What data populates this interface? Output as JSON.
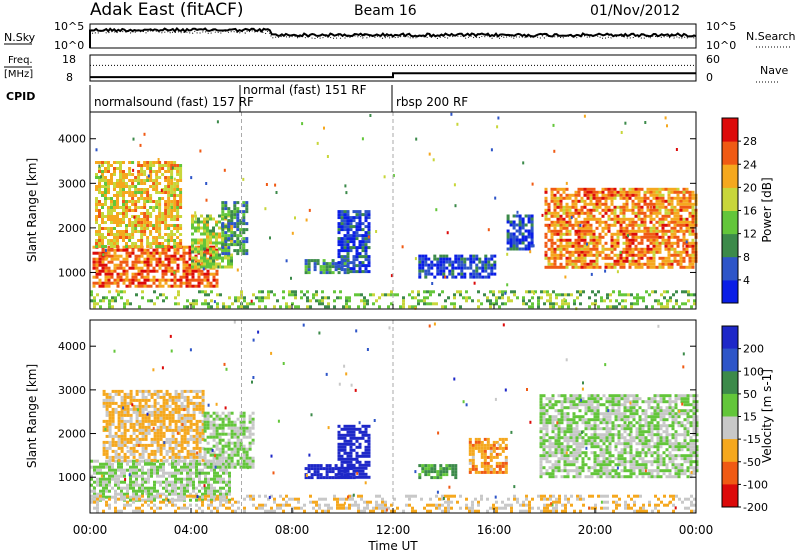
{
  "header": {
    "title": "Adak East (fitACF)",
    "beam": "Beam 16",
    "date": "01/Nov/2012"
  },
  "chart_data": [
    {
      "type": "line",
      "panel": "noise",
      "left_label": "N.Sky",
      "right_label": "N.Search",
      "left_ticks": [
        "10^5",
        "10^0"
      ],
      "right_ticks": [
        "10^5",
        "10^0"
      ],
      "series": [
        {
          "name": "N.Sky",
          "style": "solid"
        },
        {
          "name": "N.Search",
          "style": "dotted"
        }
      ]
    },
    {
      "type": "line",
      "panel": "frequency",
      "left_label": "Freq. [MHz]",
      "right_label": "Nave",
      "left_ticks": [
        "18",
        "8"
      ],
      "right_ticks": [
        "60",
        "0"
      ],
      "series": [
        {
          "name": "Freq.",
          "style": "solid",
          "x": [
            0,
            12,
            12,
            24
          ],
          "y": [
            9.5,
            9.5,
            11,
            11
          ]
        },
        {
          "name": "Nave",
          "style": "dotted",
          "x": [
            0,
            12,
            12,
            24
          ],
          "y": [
            14,
            14,
            14,
            14
          ]
        }
      ]
    },
    {
      "type": "table",
      "panel": "cpid",
      "label": "CPID",
      "segments": [
        {
          "text": "normalsound (fast) 157 RF",
          "start": 0,
          "end": 6
        },
        {
          "text": "normal (fast) 151 RF",
          "start": 6,
          "end": 12
        },
        {
          "text": "rbsp 200 RF",
          "start": 12,
          "end": 24
        }
      ]
    },
    {
      "type": "heatmap",
      "panel": "power",
      "ylabel": "Slant Range [km]",
      "ylim": [
        180,
        4600
      ],
      "yticks": [
        1000,
        2000,
        3000,
        4000
      ],
      "xlim": [
        0,
        24
      ],
      "colorbar": {
        "label": "Power [dB]",
        "ticks": [
          "4",
          "8",
          "12",
          "16",
          "20",
          "24",
          "28"
        ],
        "colors": [
          "#0a1ee6",
          "#2e55c8",
          "#3c8a4a",
          "#63c63a",
          "#c8d63a",
          "#f5a81e",
          "#f05a14",
          "#dc0a0a"
        ]
      },
      "regions": [
        {
          "x": [
            0.1,
            5.0
          ],
          "range": [
            700,
            1600
          ],
          "level": 26
        },
        {
          "x": [
            0.2,
            3.6
          ],
          "range": [
            1600,
            3500
          ],
          "level": 20
        },
        {
          "x": [
            4.0,
            5.6
          ],
          "range": [
            1100,
            2300
          ],
          "level": 16
        },
        {
          "x": [
            5.2,
            6.2
          ],
          "range": [
            1400,
            2600
          ],
          "level": 10
        },
        {
          "x": [
            9.8,
            11.0
          ],
          "range": [
            1000,
            2400
          ],
          "level": 5
        },
        {
          "x": [
            8.5,
            10.2
          ],
          "range": [
            1000,
            1300
          ],
          "level": 9
        },
        {
          "x": [
            13.0,
            16.0
          ],
          "range": [
            900,
            1400
          ],
          "level": 5
        },
        {
          "x": [
            16.5,
            17.5
          ],
          "range": [
            1500,
            2300
          ],
          "level": 5
        },
        {
          "x": [
            18.0,
            24.0
          ],
          "range": [
            1100,
            2900
          ],
          "level": 24
        },
        {
          "x": [
            0.0,
            24.0
          ],
          "range": [
            250,
            600
          ],
          "level": 14
        }
      ]
    },
    {
      "type": "heatmap",
      "panel": "velocity",
      "ylabel": "Slant Range [km]",
      "ylim": [
        180,
        4600
      ],
      "yticks": [
        1000,
        2000,
        3000,
        4000
      ],
      "xlabel": "Time UT",
      "xlim": [
        0,
        24
      ],
      "xticks": [
        "00:00",
        "04:00",
        "08:00",
        "12:00",
        "16:00",
        "20:00",
        "00:00"
      ],
      "colorbar": {
        "label": "Velocity [m s-1]",
        "ticks": [
          "200",
          "100",
          "50",
          "15",
          "-15",
          "-50",
          "-100",
          "-200"
        ],
        "colors": [
          "#1e28c8",
          "#2e55c8",
          "#3c8a4a",
          "#63c63a",
          "#c8c8c8",
          "#f5a81e",
          "#f05a14",
          "#dc0a0a"
        ]
      },
      "regions": [
        {
          "x": [
            0.0,
            5.5
          ],
          "range": [
            500,
            1400
          ],
          "value": 0
        },
        {
          "x": [
            0.5,
            4.5
          ],
          "range": [
            1400,
            3000
          ],
          "value": -40
        },
        {
          "x": [
            4.5,
            6.5
          ],
          "range": [
            1200,
            2500
          ],
          "value": 0
        },
        {
          "x": [
            9.8,
            11.0
          ],
          "range": [
            1000,
            2200
          ],
          "value": 180
        },
        {
          "x": [
            8.5,
            10.5
          ],
          "range": [
            1000,
            1300
          ],
          "value": 200
        },
        {
          "x": [
            13.0,
            14.5
          ],
          "range": [
            1000,
            1300
          ],
          "value": 40
        },
        {
          "x": [
            15.0,
            16.5
          ],
          "range": [
            1100,
            1900
          ],
          "value": -60
        },
        {
          "x": [
            17.8,
            24.0
          ],
          "range": [
            1000,
            2900
          ],
          "value": 0
        },
        {
          "x": [
            0.0,
            24.0
          ],
          "range": [
            250,
            600
          ],
          "value": -30
        }
      ]
    }
  ]
}
